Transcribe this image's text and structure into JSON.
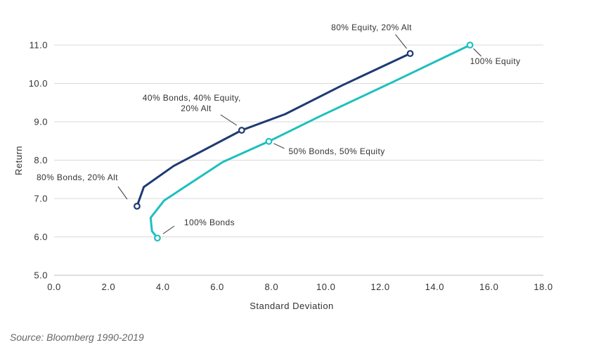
{
  "chart_data": {
    "type": "line",
    "title": "",
    "xlabel": "Standard Deviation",
    "ylabel": "Return",
    "xlim": [
      0,
      18
    ],
    "ylim": [
      5,
      11
    ],
    "x_ticks": [
      "0.0",
      "2.0",
      "4.0",
      "6.0",
      "8.0",
      "10.0",
      "12.0",
      "14.0",
      "16.0",
      "18.0"
    ],
    "y_ticks": [
      "5.0",
      "6.0",
      "7.0",
      "8.0",
      "9.0",
      "10.0",
      "11.0"
    ],
    "grid": "horizontal",
    "series": [
      {
        "color": "#1f3a73",
        "points": [
          {
            "x": 3.05,
            "y": 6.8
          },
          {
            "x": 3.3,
            "y": 7.3
          },
          {
            "x": 4.4,
            "y": 7.85
          },
          {
            "x": 6.9,
            "y": 8.78
          },
          {
            "x": 8.5,
            "y": 9.2
          },
          {
            "x": 10.6,
            "y": 9.95
          },
          {
            "x": 13.1,
            "y": 10.78
          }
        ],
        "markers": [
          {
            "x": 3.05,
            "y": 6.8,
            "label": "80% Bonds, 20% Alt"
          },
          {
            "x": 6.9,
            "y": 8.78,
            "label": "40% Bonds, 40% Equity, 20% Alt"
          },
          {
            "x": 13.1,
            "y": 10.78,
            "label": "80% Equity, 20% Alt"
          }
        ]
      },
      {
        "color": "#1fbfbf",
        "points": [
          {
            "x": 3.8,
            "y": 5.97
          },
          {
            "x": 3.6,
            "y": 6.15
          },
          {
            "x": 3.55,
            "y": 6.5
          },
          {
            "x": 4.05,
            "y": 6.95
          },
          {
            "x": 6.2,
            "y": 7.95
          },
          {
            "x": 7.9,
            "y": 8.49
          },
          {
            "x": 9.8,
            "y": 9.15
          },
          {
            "x": 12.5,
            "y": 10.05
          },
          {
            "x": 15.3,
            "y": 11.0
          }
        ],
        "markers": [
          {
            "x": 3.8,
            "y": 5.97,
            "label": "100% Bonds"
          },
          {
            "x": 7.9,
            "y": 8.49,
            "label": "50% Bonds, 50% Equity"
          },
          {
            "x": 15.3,
            "y": 11.0,
            "label": "100% Equity"
          }
        ]
      }
    ]
  },
  "source": "Source: Bloomberg 1990-2019"
}
